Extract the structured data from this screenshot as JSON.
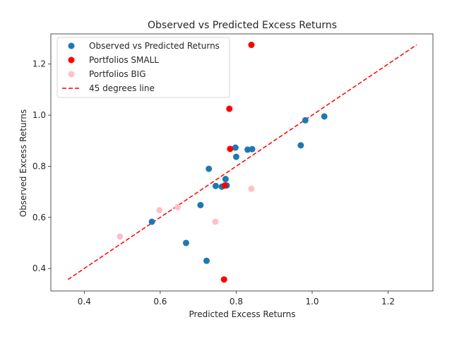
{
  "chart_data": {
    "type": "scatter",
    "title": "Observed vs Predicted Excess Returns",
    "xlabel": "Predicted Excess Returns",
    "ylabel": "Observed Excess Returns",
    "xlim": [
      0.312,
      1.318
    ],
    "ylim": [
      0.312,
      1.318
    ],
    "xticks": [
      0.4,
      0.6,
      0.8,
      1.0,
      1.2
    ],
    "yticks": [
      0.4,
      0.6,
      0.8,
      1.0,
      1.2
    ],
    "xtick_labels": [
      "0.4",
      "0.6",
      "0.8",
      "1.0",
      "1.2"
    ],
    "ytick_labels": [
      "0.4",
      "0.6",
      "0.8",
      "1.0",
      "1.2"
    ],
    "grid": false,
    "legend_position": "top-left",
    "series": [
      {
        "name": "Observed vs Predicted Returns",
        "kind": "scatter",
        "color": "#1f77b4",
        "points": [
          [
            0.578,
            0.583
          ],
          [
            0.668,
            0.5
          ],
          [
            0.706,
            0.648
          ],
          [
            0.722,
            0.43
          ],
          [
            0.728,
            0.79
          ],
          [
            0.746,
            0.723
          ],
          [
            0.762,
            0.72
          ],
          [
            0.772,
            0.75
          ],
          [
            0.775,
            0.725
          ],
          [
            0.798,
            0.873
          ],
          [
            0.8,
            0.837
          ],
          [
            0.83,
            0.865
          ],
          [
            0.842,
            0.867
          ],
          [
            0.97,
            0.882
          ],
          [
            0.982,
            0.98
          ],
          [
            1.032,
            0.995
          ]
        ]
      },
      {
        "name": "Portfolios SMALL",
        "kind": "scatter",
        "color": "#ff0000",
        "points": [
          [
            0.84,
            1.275
          ],
          [
            0.782,
            1.025
          ],
          [
            0.784,
            0.868
          ],
          [
            0.77,
            0.725
          ],
          [
            0.768,
            0.357
          ]
        ]
      },
      {
        "name": "Portfolios BIG",
        "kind": "scatter",
        "color": "#ffc0cb",
        "points": [
          [
            0.494,
            0.525
          ],
          [
            0.598,
            0.628
          ],
          [
            0.646,
            0.64
          ],
          [
            0.745,
            0.583
          ],
          [
            0.84,
            0.712
          ]
        ]
      },
      {
        "name": "45 degrees line",
        "kind": "line",
        "color": "#ff0000",
        "style": "dashed",
        "points": [
          [
            0.357,
            0.357
          ],
          [
            1.275,
            1.275
          ]
        ]
      }
    ]
  }
}
